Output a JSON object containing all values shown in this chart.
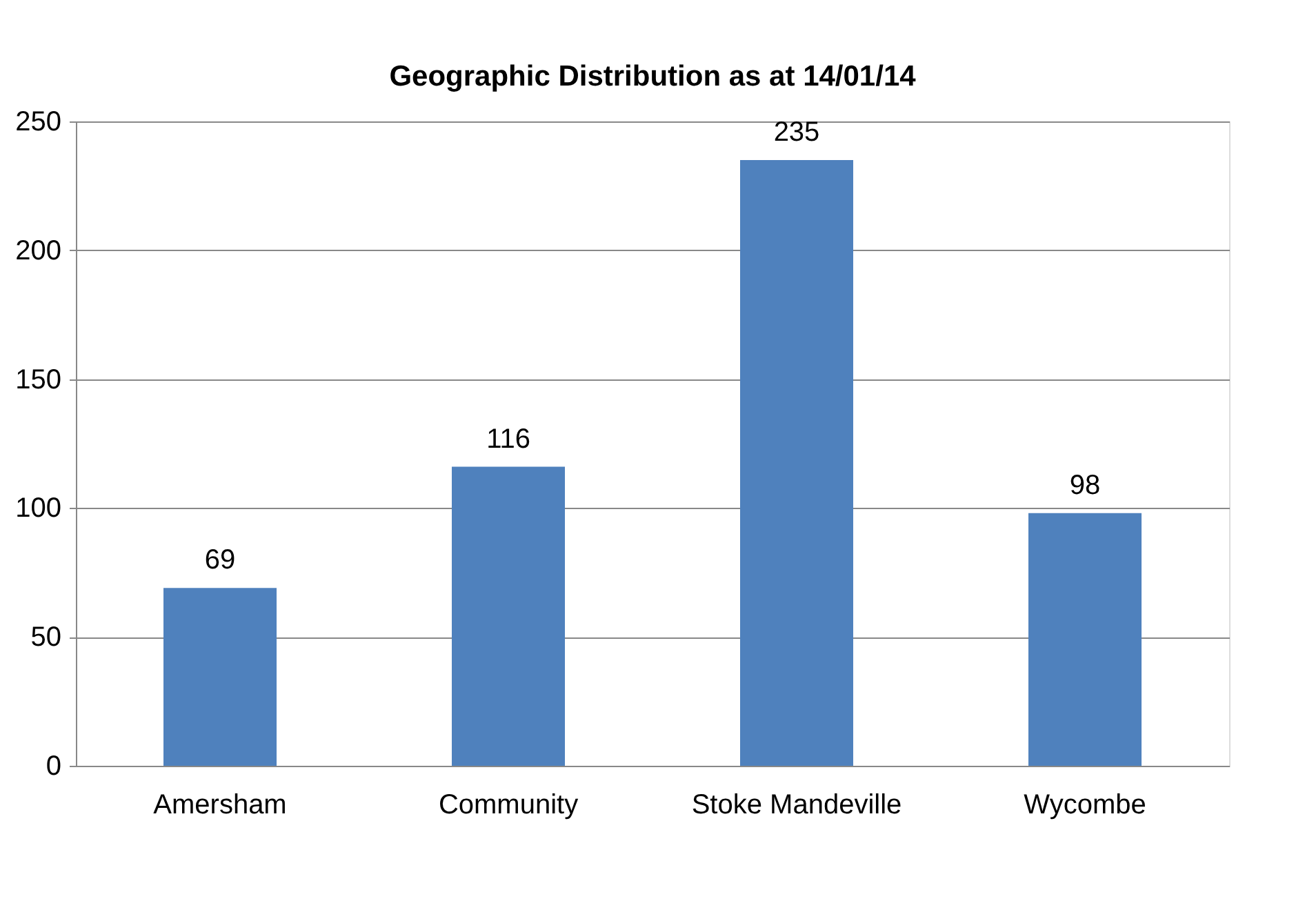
{
  "chart_data": {
    "type": "bar",
    "title": "Geographic Distribution as at 14/01/14",
    "categories": [
      "Amersham",
      "Community",
      "Stoke Mandeville",
      "Wycombe"
    ],
    "values": [
      69,
      116,
      235,
      98
    ],
    "color": "#4f81bd",
    "ylim": [
      0,
      250
    ],
    "yticks": [
      0,
      50,
      100,
      150,
      200,
      250
    ],
    "grid": "y",
    "data_labels": true
  }
}
